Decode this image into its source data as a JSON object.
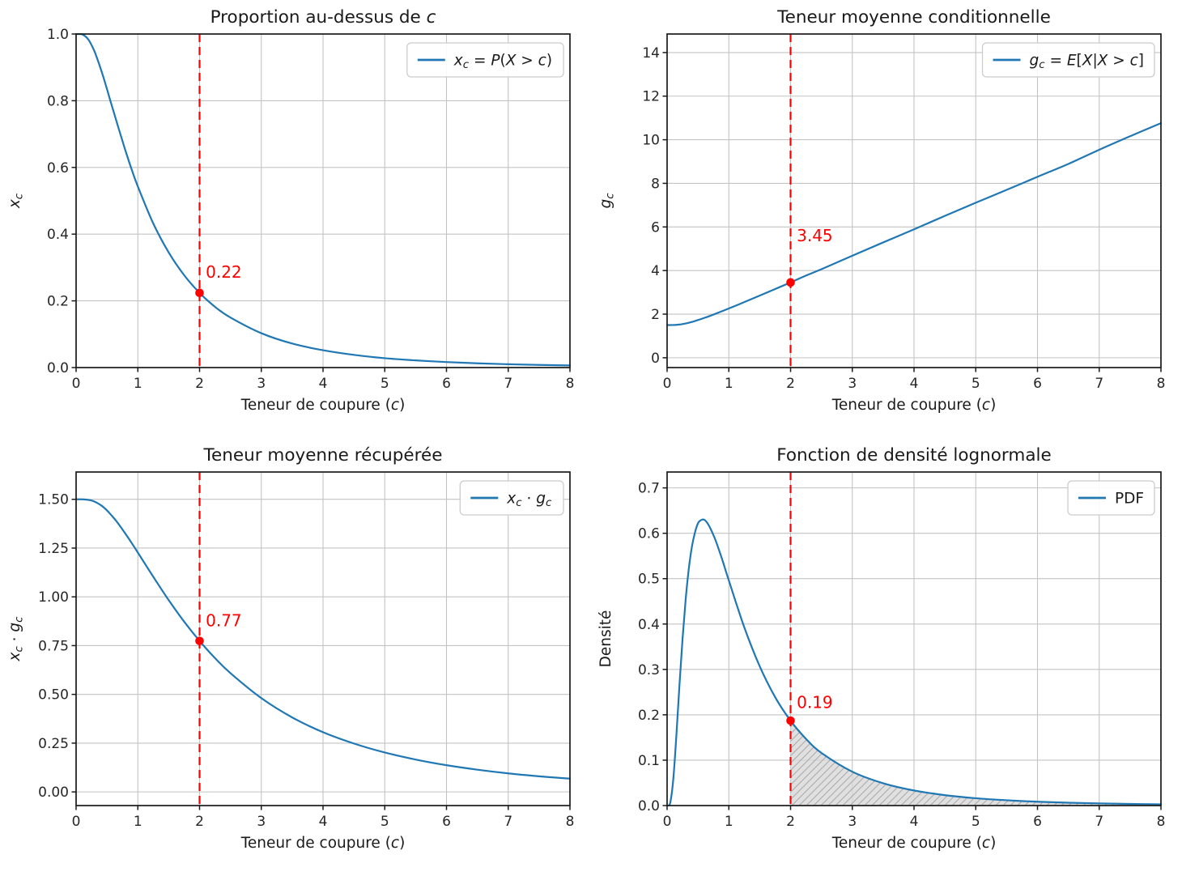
{
  "figure": {
    "background": "#ffffff"
  },
  "colors": {
    "line": "#1f77b4",
    "cutoff_red": "#ff0000",
    "grid": "#c3c3c3",
    "spine": "#1a1a1a",
    "tick_text": "#262626",
    "title_text": "#1a1a1a",
    "legend_border": "#cccccc",
    "legend_bg": "#ffffff",
    "hatch_fill": "#d8d8d8",
    "hatch_line": "#ababab"
  },
  "chart_data": [
    {
      "type": "line",
      "name": "proportion-above-c",
      "title": "Proportion au-dessus de c",
      "title_segs": [
        {
          "t": "Proportion au-dessus de "
        },
        {
          "t": "c",
          "i": true
        }
      ],
      "xlabel": "Teneur de coupure (c)",
      "xlabel_segs": [
        {
          "t": "Teneur de coupure ("
        },
        {
          "t": "c",
          "i": true
        },
        {
          "t": ")"
        }
      ],
      "ylabel": "x_c",
      "ylabel_segs": [
        {
          "t": "x",
          "i": true
        },
        {
          "t": "c",
          "i": true,
          "s": true
        }
      ],
      "legend": {
        "label": "x_c = P(X > c)",
        "position": "upper right",
        "segs": [
          {
            "t": "x",
            "i": true
          },
          {
            "t": "c",
            "i": true,
            "s": true
          },
          {
            "t": " = "
          },
          {
            "t": "P",
            "i": true
          },
          {
            "t": "("
          },
          {
            "t": "X",
            "i": true
          },
          {
            "t": " > "
          },
          {
            "t": "c",
            "i": true
          },
          {
            "t": ")"
          }
        ]
      },
      "grid": true,
      "xlim": [
        0,
        8
      ],
      "ylim": [
        0,
        1.0
      ],
      "xticks": {
        "values": [
          0,
          1,
          2,
          3,
          4,
          5,
          6,
          7,
          8
        ],
        "labels": [
          "0",
          "1",
          "2",
          "3",
          "4",
          "5",
          "6",
          "7",
          "8"
        ]
      },
      "yticks": {
        "values": [
          0,
          0.2,
          0.4,
          0.6,
          0.8,
          1.0
        ],
        "labels": [
          "0.0",
          "0.2",
          "0.4",
          "0.6",
          "0.8",
          "1.0"
        ]
      },
      "x": [
        0,
        0.05,
        0.1,
        0.15,
        0.2,
        0.25,
        0.3,
        0.35,
        0.4,
        0.45,
        0.5,
        0.55,
        0.6,
        0.65,
        0.7,
        0.75,
        0.8,
        0.9,
        1,
        1.25,
        1.5,
        1.75,
        2,
        2.25,
        2.5,
        3,
        3.5,
        4,
        4.5,
        5,
        5.5,
        6,
        6.5,
        7,
        7.5,
        8
      ],
      "y": [
        1,
        1,
        0.999,
        0.993,
        0.983,
        0.967,
        0.947,
        0.922,
        0.895,
        0.866,
        0.835,
        0.803,
        0.772,
        0.741,
        0.71,
        0.68,
        0.65,
        0.594,
        0.543,
        0.432,
        0.345,
        0.277,
        0.224,
        0.182,
        0.15,
        0.103,
        0.072,
        0.052,
        0.038,
        0.028,
        0.0215,
        0.0165,
        0.0128,
        0.01,
        0.0079,
        0.0063
      ],
      "cutoff": {
        "x": 2,
        "y": 0.224,
        "label": "0.22",
        "label_x": 2.1,
        "label_y": 0.27
      },
      "hatch_region": null
    },
    {
      "type": "line",
      "name": "conditional-mean-grade",
      "title": "Teneur moyenne conditionnelle",
      "title_segs": [
        {
          "t": "Teneur moyenne conditionnelle"
        }
      ],
      "xlabel": "Teneur de coupure (c)",
      "xlabel_segs": [
        {
          "t": "Teneur de coupure ("
        },
        {
          "t": "c",
          "i": true
        },
        {
          "t": ")"
        }
      ],
      "ylabel": "g_c",
      "ylabel_segs": [
        {
          "t": "g",
          "i": true
        },
        {
          "t": "c",
          "i": true,
          "s": true
        }
      ],
      "legend": {
        "label": "g_c = E[X|X > c]",
        "position": "upper right",
        "segs": [
          {
            "t": "g",
            "i": true
          },
          {
            "t": "c",
            "i": true,
            "s": true
          },
          {
            "t": " = "
          },
          {
            "t": "E",
            "i": true
          },
          {
            "t": "["
          },
          {
            "t": "X",
            "i": true
          },
          {
            "t": "|"
          },
          {
            "t": "X",
            "i": true
          },
          {
            "t": " > "
          },
          {
            "t": "c",
            "i": true
          },
          {
            "t": "]"
          }
        ]
      },
      "grid": true,
      "xlim": [
        0,
        8
      ],
      "ylim": [
        -0.45,
        14.85
      ],
      "xticks": {
        "values": [
          0,
          1,
          2,
          3,
          4,
          5,
          6,
          7,
          8
        ],
        "labels": [
          "0",
          "1",
          "2",
          "3",
          "4",
          "5",
          "6",
          "7",
          "8"
        ]
      },
      "yticks": {
        "values": [
          0,
          2,
          4,
          6,
          8,
          10,
          12,
          14
        ],
        "labels": [
          "0",
          "2",
          "4",
          "6",
          "8",
          "10",
          "12",
          "14"
        ]
      },
      "x": [
        0,
        0.05,
        0.1,
        0.15,
        0.2,
        0.25,
        0.3,
        0.35,
        0.4,
        0.45,
        0.5,
        0.55,
        0.6,
        0.65,
        0.7,
        0.75,
        0.8,
        0.9,
        1,
        1.25,
        1.5,
        1.75,
        2,
        2.25,
        2.5,
        3,
        3.5,
        4,
        4.5,
        5,
        5.5,
        6,
        6.5,
        7,
        7.5,
        8
      ],
      "y": [
        1.5,
        1.5,
        1.502,
        1.51,
        1.523,
        1.545,
        1.572,
        1.605,
        1.642,
        1.683,
        1.728,
        1.776,
        1.824,
        1.874,
        1.927,
        1.98,
        2.035,
        2.147,
        2.26,
        2.552,
        2.85,
        3.152,
        3.455,
        3.77,
        4.06,
        4.68,
        5.29,
        5.89,
        6.51,
        7.11,
        7.7,
        8.3,
        8.89,
        9.54,
        10.16,
        10.76
      ],
      "cutoff": {
        "x": 2,
        "y": 3.455,
        "label": "3.45",
        "label_x": 2.1,
        "label_y": 5.35
      },
      "hatch_region": null
    },
    {
      "type": "line",
      "name": "recovered-mean-grade",
      "title": "Teneur moyenne récupérée",
      "title_segs": [
        {
          "t": "Teneur moyenne récupérée"
        }
      ],
      "xlabel": "Teneur de coupure (c)",
      "xlabel_segs": [
        {
          "t": "Teneur de coupure ("
        },
        {
          "t": "c",
          "i": true
        },
        {
          "t": ")"
        }
      ],
      "ylabel": "x_c · g_c",
      "ylabel_segs": [
        {
          "t": "x",
          "i": true
        },
        {
          "t": "c",
          "i": true,
          "s": true
        },
        {
          "t": " ⋅ "
        },
        {
          "t": "g",
          "i": true
        },
        {
          "t": "c",
          "i": true,
          "s": true
        }
      ],
      "legend": {
        "label": "x_c · g_c",
        "position": "upper right",
        "segs": [
          {
            "t": "x",
            "i": true
          },
          {
            "t": "c",
            "i": true,
            "s": true
          },
          {
            "t": " ⋅ "
          },
          {
            "t": "g",
            "i": true
          },
          {
            "t": "c",
            "i": true,
            "s": true
          }
        ]
      },
      "grid": true,
      "xlim": [
        0,
        8
      ],
      "ylim": [
        -0.07,
        1.64
      ],
      "xticks": {
        "values": [
          0,
          1,
          2,
          3,
          4,
          5,
          6,
          7,
          8
        ],
        "labels": [
          "0",
          "1",
          "2",
          "3",
          "4",
          "5",
          "6",
          "7",
          "8"
        ]
      },
      "yticks": {
        "values": [
          0,
          0.25,
          0.5,
          0.75,
          1.0,
          1.25,
          1.5
        ],
        "labels": [
          "0.00",
          "0.25",
          "0.50",
          "0.75",
          "1.00",
          "1.25",
          "1.50"
        ]
      },
      "x": [
        0,
        0.05,
        0.1,
        0.15,
        0.2,
        0.25,
        0.3,
        0.35,
        0.4,
        0.45,
        0.5,
        0.55,
        0.6,
        0.65,
        0.7,
        0.75,
        0.8,
        0.9,
        1,
        1.25,
        1.5,
        1.75,
        2,
        2.25,
        2.5,
        3,
        3.5,
        4,
        4.5,
        5,
        5.5,
        6,
        6.5,
        7,
        7.5,
        8
      ],
      "y": [
        1.5,
        1.5,
        1.5,
        1.499,
        1.497,
        1.494,
        1.488,
        1.48,
        1.47,
        1.458,
        1.443,
        1.426,
        1.408,
        1.389,
        1.368,
        1.346,
        1.323,
        1.276,
        1.227,
        1.103,
        0.983,
        0.873,
        0.774,
        0.686,
        0.609,
        0.481,
        0.382,
        0.306,
        0.248,
        0.202,
        0.166,
        0.137,
        0.114,
        0.095,
        0.08,
        0.068
      ],
      "cutoff": {
        "x": 2,
        "y": 0.774,
        "label": "0.77",
        "label_x": 2.1,
        "label_y": 0.85
      },
      "hatch_region": null
    },
    {
      "type": "line",
      "name": "lognormal-density",
      "title": "Fonction de densité lognormale",
      "title_segs": [
        {
          "t": "Fonction de densité lognormale"
        }
      ],
      "xlabel": "Teneur de coupure (c)",
      "xlabel_segs": [
        {
          "t": "Teneur de coupure ("
        },
        {
          "t": "c",
          "i": true
        },
        {
          "t": ")"
        }
      ],
      "ylabel": "Densité",
      "ylabel_segs": [
        {
          "t": "Densité"
        }
      ],
      "legend": {
        "label": "PDF",
        "position": "upper right",
        "segs": [
          {
            "t": "PDF"
          }
        ]
      },
      "grid": true,
      "xlim": [
        0,
        8
      ],
      "ylim": [
        0,
        0.735
      ],
      "xticks": {
        "values": [
          0,
          1,
          2,
          3,
          4,
          5,
          6,
          7,
          8
        ],
        "labels": [
          "0",
          "1",
          "2",
          "3",
          "4",
          "5",
          "6",
          "7",
          "8"
        ]
      },
      "yticks": {
        "values": [
          0,
          0.1,
          0.2,
          0.3,
          0.4,
          0.5,
          0.6,
          0.7
        ],
        "labels": [
          "0.0",
          "0.1",
          "0.2",
          "0.3",
          "0.4",
          "0.5",
          "0.6",
          "0.7"
        ]
      },
      "x": [
        0,
        0.05,
        0.1,
        0.15,
        0.2,
        0.25,
        0.3,
        0.35,
        0.4,
        0.45,
        0.5,
        0.55,
        0.6,
        0.65,
        0.7,
        0.75,
        0.8,
        0.9,
        1,
        1.25,
        1.5,
        1.75,
        2,
        2.25,
        2.5,
        3,
        3.5,
        4,
        4.5,
        5,
        5.5,
        6,
        6.5,
        7,
        7.5,
        8
      ],
      "y": [
        0,
        0.006,
        0.058,
        0.154,
        0.265,
        0.367,
        0.453,
        0.52,
        0.569,
        0.601,
        0.622,
        0.629,
        0.63,
        0.623,
        0.611,
        0.596,
        0.579,
        0.539,
        0.496,
        0.393,
        0.307,
        0.239,
        0.187,
        0.147,
        0.116,
        0.0746,
        0.0492,
        0.0332,
        0.023,
        0.0162,
        0.0117,
        0.0085,
        0.0063,
        0.0048,
        0.0036,
        0.0028
      ],
      "cutoff": {
        "x": 2,
        "y": 0.187,
        "label": "0.19",
        "label_x": 2.1,
        "label_y": 0.215
      },
      "hatch_region": {
        "from": 2,
        "to": 8
      }
    }
  ]
}
